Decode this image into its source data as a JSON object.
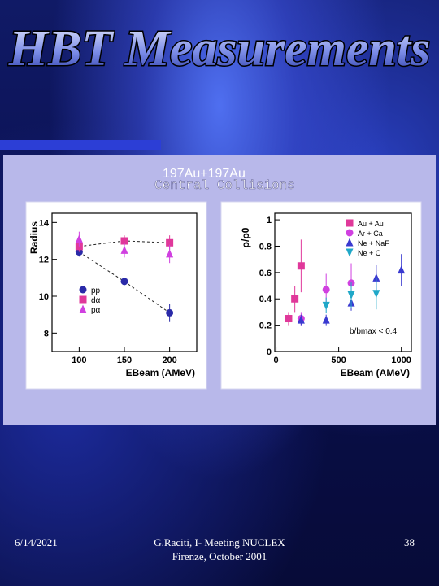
{
  "slide": {
    "title": "HBT Measurements",
    "footer": {
      "date": "6/14/2021",
      "center": "G.Raciti, I- Meeting NUCLEX Firenze, October 2001",
      "page_number": "38"
    }
  },
  "figure": {
    "header_line1": "197Au+197Au",
    "header_mass": "197",
    "header_sym": "Au",
    "header_line2": "Central Collisions",
    "left_ylabel": "Radius",
    "left_xlabel": "EBeam (AMeV)",
    "right_ylabel": "ρ/ρ0",
    "right_xlabel": "EBeam (AMeV)",
    "right_annotation": "b/bmax < 0.4"
  },
  "chart_data": [
    {
      "type": "scatter",
      "ylabel": "Radius",
      "xlabel": "EBeam (AMeV)",
      "xlim": [
        70,
        230
      ],
      "ylim": [
        7,
        14.5
      ],
      "x_ticks": [
        100,
        150,
        200
      ],
      "y_ticks": [
        8,
        10,
        12,
        14
      ],
      "legend_position": "bottom-left",
      "series": [
        {
          "name": "pp",
          "color": "#2a2aa8",
          "marker": "circle",
          "x": [
            100,
            150,
            200
          ],
          "y": [
            12.4,
            10.8,
            9.1
          ],
          "yerr": [
            0.25,
            0.2,
            0.5
          ],
          "connect": true
        },
        {
          "name": "dα",
          "color": "#e0389a",
          "marker": "square",
          "x": [
            100,
            150,
            200
          ],
          "y": [
            12.7,
            13.0,
            12.9
          ],
          "yerr": [
            0.3,
            0.3,
            0.4
          ],
          "connect": true
        },
        {
          "name": "pα",
          "color": "#d040e0",
          "marker": "triangle",
          "x": [
            100,
            150,
            200
          ],
          "y": [
            13.1,
            12.5,
            12.3
          ],
          "yerr": [
            0.4,
            0.4,
            0.5
          ],
          "connect": false
        }
      ]
    },
    {
      "type": "scatter",
      "ylabel": "ρ/ρ0",
      "xlabel": "EBeam (AMeV)",
      "xlim": [
        -10,
        1080
      ],
      "ylim": [
        0,
        1.05
      ],
      "x_ticks": [
        0,
        500,
        1000
      ],
      "y_ticks": [
        0,
        0.2,
        0.4,
        0.6,
        0.8,
        1
      ],
      "legend_position": "top-right",
      "series": [
        {
          "name": "Au + Au",
          "color": "#e0389a",
          "marker": "square",
          "x": [
            100,
            150,
            200
          ],
          "y": [
            0.25,
            0.4,
            0.65
          ],
          "yerr": [
            0.05,
            0.1,
            0.2
          ]
        },
        {
          "name": "Ar + Ca",
          "color": "#d040e0",
          "marker": "circle",
          "x": [
            200,
            400,
            600
          ],
          "y": [
            0.25,
            0.47,
            0.52
          ],
          "yerr": [
            0.05,
            0.12,
            0.15
          ]
        },
        {
          "name": "Ne + NaF",
          "color": "#3a3ad0",
          "marker": "triangle",
          "x": [
            200,
            400,
            600,
            800,
            1000
          ],
          "y": [
            0.24,
            0.24,
            0.37,
            0.56,
            0.62
          ],
          "yerr": [
            0.04,
            0.04,
            0.06,
            0.1,
            0.12
          ]
        },
        {
          "name": "Ne + C",
          "color": "#20a8c8",
          "marker": "triangle-down",
          "x": [
            400,
            600,
            800
          ],
          "y": [
            0.35,
            0.43,
            0.44
          ],
          "yerr": [
            0.06,
            0.1,
            0.12
          ]
        }
      ]
    }
  ]
}
